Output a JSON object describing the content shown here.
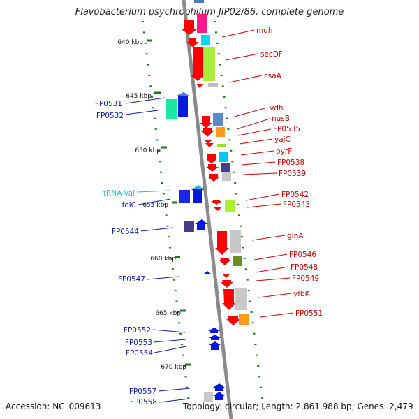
{
  "title": "Flavobacterium psychrophilum JIP02/86, complete genome",
  "accession_text": "Accession: NC_009613",
  "topology_text": "Topology: circular; Length: 2,861,988 bp; Genes: 2,479",
  "colors": {
    "backbone": "#8a8a8a",
    "tick": "#1a7a1a",
    "forward_label": "#0a1ea8",
    "reverse_label": "#cc0000",
    "trna_label": "#20b8e0"
  },
  "ruler_labels": [
    "640 kbp",
    "645 kbp",
    "650 kbp",
    "655 kbp",
    "660 kbp",
    "665 kbp",
    "670 kbp"
  ],
  "left_labels": [
    "FP0531",
    "FP0532",
    "tRNA-Val",
    "folC",
    "FP0544",
    "FP0547",
    "FP0552",
    "FP0553",
    "FP0554",
    "FP0557",
    "FP0558"
  ],
  "right_labels": [
    "mdh",
    "secDF",
    "csaA",
    "vdh",
    "nusB",
    "FP0535",
    "yajC",
    "pyrF",
    "FP0538",
    "FP0539",
    "FP0542",
    "FP0543",
    "glnA",
    "FP0546",
    "FP0548",
    "FP0549",
    "yfbK",
    "FP0551"
  ]
}
